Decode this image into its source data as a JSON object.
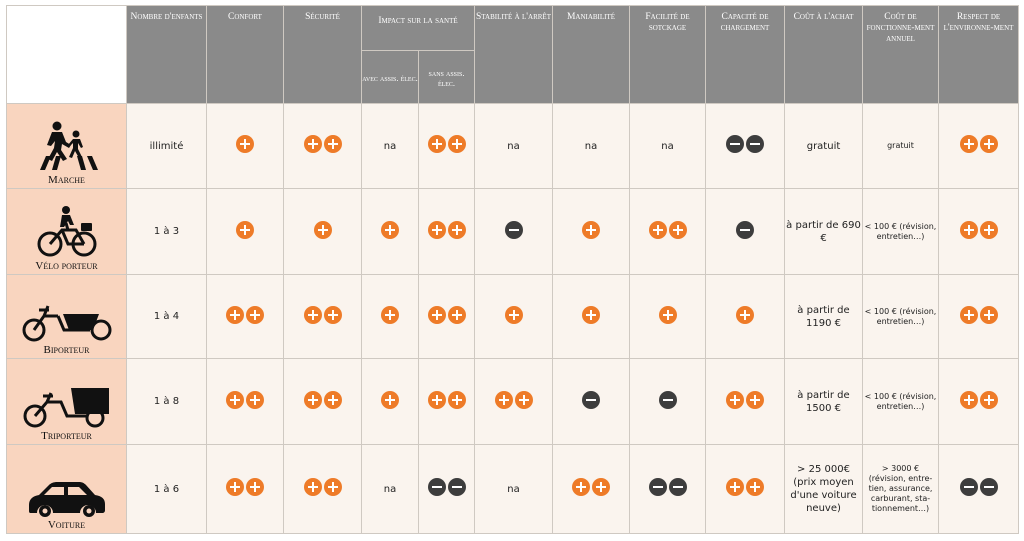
{
  "headers": {
    "nombre_enfants": "Nombre d'enfants",
    "confort": "Confort",
    "securite": "Sécurité",
    "impact": "Impact sur la santé",
    "avec": "avec assis. élec.",
    "sans": "sans assis. élec.",
    "stabilite": "Stabilité à l'arrêt",
    "maniabilite": "Maniabilité",
    "stockage": "Facilité de sotckage",
    "capacite": "Capacité de chargement",
    "cout_achat": "Coût à l'achat",
    "cout_fonct": "Coût de fonctionne-ment annuel",
    "respect": "Respect de l'environne-ment"
  },
  "rows": [
    {
      "label": "Marche",
      "icon": "pedestrian-crossing-icon",
      "enfants": "illimité",
      "confort": "+",
      "securite": "++",
      "avec": "na",
      "sans": "++",
      "stabilite": "na",
      "maniabilite": "na",
      "stockage": "na",
      "capacite": "--",
      "cout_achat": "gratuit",
      "cout_fonct": "gratuit",
      "respect": "++"
    },
    {
      "label": "Vélo porteur",
      "icon": "cargo-bike-icon",
      "enfants": "1 à 3",
      "confort": "+",
      "securite": "+",
      "avec": "+",
      "sans": "++",
      "stabilite": "-",
      "maniabilite": "+",
      "stockage": "++",
      "capacite": "-",
      "cout_achat": "à partir de 690 €",
      "cout_fonct": "< 100 € (révision, entretien…)",
      "respect": "++"
    },
    {
      "label": "Biporteur",
      "icon": "biporteur-icon",
      "enfants": "1 à 4",
      "confort": "++",
      "securite": "++",
      "avec": "+",
      "sans": "++",
      "stabilite": "+",
      "maniabilite": "+",
      "stockage": "+",
      "capacite": "+",
      "cout_achat": "à partir de 1190 €",
      "cout_fonct": "< 100 € (révision, entretien…)",
      "respect": "++"
    },
    {
      "label": "Triporteur",
      "icon": "triporteur-icon",
      "enfants": "1 à 8",
      "confort": "++",
      "securite": "++",
      "avec": "+",
      "sans": "++",
      "stabilite": "++",
      "maniabilite": "-",
      "stockage": "-",
      "capacite": "++",
      "cout_achat": "à partir de 1500 €",
      "cout_fonct": "< 100 € (révision, entretien…)",
      "respect": "++"
    },
    {
      "label": "Voiture",
      "icon": "car-icon",
      "enfants": "1 à 6",
      "confort": "++",
      "securite": "++",
      "avec": "na",
      "sans": "--",
      "stabilite": "na",
      "maniabilite": "++",
      "stockage": "--",
      "capacite": "++",
      "cout_achat": "> 25 000€ (prix moyen d'une voiture neuve)",
      "cout_fonct": "> 3000 € (révision, entre-tien, assurance, carburant, sta-tionnement…)",
      "respect": "--"
    }
  ]
}
